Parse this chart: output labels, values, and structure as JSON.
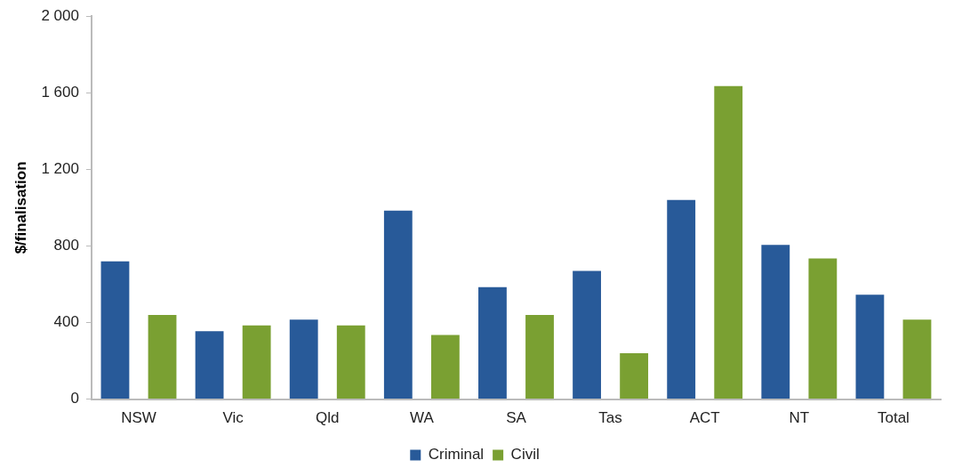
{
  "chart_data": {
    "type": "bar",
    "ylabel": "$/finalisation",
    "categories": [
      "NSW",
      "Vic",
      "Qld",
      "WA",
      "SA",
      "Tas",
      "ACT",
      "NT",
      "Total"
    ],
    "series": [
      {
        "name": "Criminal",
        "color": "#285a99",
        "values": [
          720,
          355,
          415,
          985,
          585,
          670,
          1040,
          805,
          545
        ]
      },
      {
        "name": "Civil",
        "color": "#7aa032",
        "values": [
          440,
          385,
          385,
          335,
          440,
          240,
          1635,
          735,
          415
        ]
      }
    ],
    "ylim": [
      0,
      2000
    ],
    "yticks": [
      0,
      400,
      800,
      {
        "value": 1200,
        "label": "1 200"
      },
      {
        "value": 1600,
        "label": "1 600"
      },
      {
        "value": 2000,
        "label": "2 000"
      }
    ],
    "grid": false,
    "legend": "bottom"
  }
}
